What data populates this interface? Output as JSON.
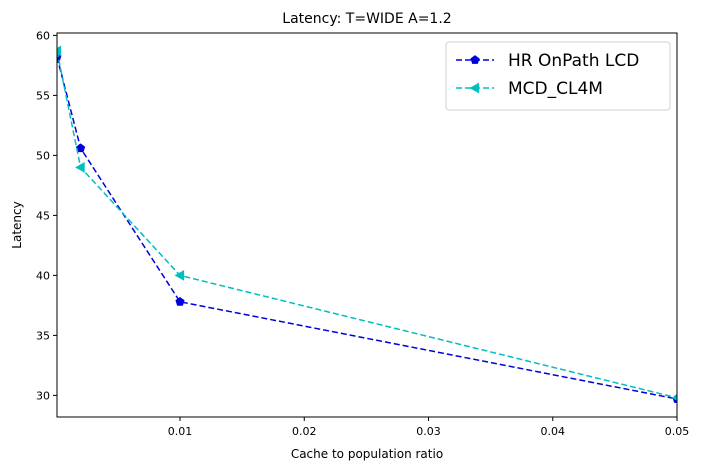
{
  "chart_data": {
    "type": "line",
    "title": "Latency: T=WIDE A=1.2",
    "xlabel": "Cache to population ratio",
    "ylabel": "Latency",
    "xlim": [
      0.0001,
      0.05
    ],
    "ylim": [
      28.2,
      60.2
    ],
    "x_ticks": [
      0.01,
      0.02,
      0.03,
      0.04,
      0.05
    ],
    "x_tick_labels": [
      "0.01",
      "0.02",
      "0.03",
      "0.04",
      "0.05"
    ],
    "y_ticks": [
      30,
      35,
      40,
      45,
      50,
      55,
      60
    ],
    "y_tick_labels": [
      "30",
      "35",
      "40",
      "45",
      "50",
      "55",
      "60"
    ],
    "grid": false,
    "legend_position": "top-right",
    "series": [
      {
        "name": "HR OnPath LCD",
        "color": "#0000dd",
        "line_style": "dashed",
        "marker": "pentagon",
        "x": [
          0.0001,
          0.002,
          0.01,
          0.05
        ],
        "y": [
          58.2,
          50.6,
          37.8,
          29.7
        ]
      },
      {
        "name": "MCD_CL4M",
        "color": "#00bfbf",
        "line_style": "dashed",
        "marker": "triangle-left",
        "x": [
          0.0001,
          0.002,
          0.01,
          0.05
        ],
        "y": [
          58.7,
          49.0,
          40.0,
          29.8
        ]
      }
    ]
  }
}
